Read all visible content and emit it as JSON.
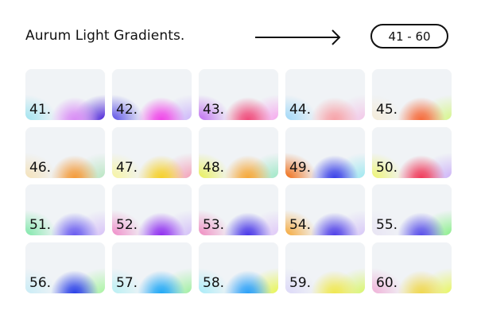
{
  "header": {
    "title": "Aurum Light Gradients.",
    "range_label": "41 - 60",
    "arrow_icon": "long-arrow-right-icon"
  },
  "cards": [
    {
      "label": "41.",
      "colors": [
        "#9fe4f0",
        "#d98cf5",
        "#4b22d8"
      ]
    },
    {
      "label": "42.",
      "colors": [
        "#5a4fe6",
        "#f044e8",
        "#cdb6fa"
      ]
    },
    {
      "label": "43.",
      "colors": [
        "#c06df0",
        "#f04a7a",
        "#f6a8ee"
      ]
    },
    {
      "label": "44.",
      "colors": [
        "#9ed8f8",
        "#f7a2a8",
        "#f3c7e8"
      ]
    },
    {
      "label": "45.",
      "colors": [
        "#f5ecd8",
        "#f66a3a",
        "#d6f68a"
      ]
    },
    {
      "label": "46.",
      "colors": [
        "#f5e2b8",
        "#f49a38",
        "#b9e6c2"
      ]
    },
    {
      "label": "47.",
      "colors": [
        "#f7f4a0",
        "#f6d028",
        "#f4a0b8"
      ]
    },
    {
      "label": "48.",
      "colors": [
        "#e8f058",
        "#f6a838",
        "#9ee8c6"
      ]
    },
    {
      "label": "49.",
      "colors": [
        "#f06a10",
        "#3a40e8",
        "#9ee8f0"
      ]
    },
    {
      "label": "50.",
      "colors": [
        "#eef470",
        "#f03a5a",
        "#cdb2f8"
      ]
    },
    {
      "label": "51.",
      "colors": [
        "#7de8a8",
        "#6a5cf0",
        "#d8c2f8"
      ]
    },
    {
      "label": "52.",
      "colors": [
        "#f08ac8",
        "#9030f0",
        "#d4c0f8"
      ]
    },
    {
      "label": "53.",
      "colors": [
        "#f08ac0",
        "#4a38e8",
        "#e0c8f8"
      ]
    },
    {
      "label": "54.",
      "colors": [
        "#f6a838",
        "#5040e8",
        "#d8c8f8"
      ]
    },
    {
      "label": "55.",
      "colors": [
        "#e8e4f4",
        "#5a50ea",
        "#8af08a"
      ]
    },
    {
      "label": "56.",
      "colors": [
        "#c8ecf6",
        "#2a40e8",
        "#a8f4a0"
      ]
    },
    {
      "label": "57.",
      "colors": [
        "#b8f0f4",
        "#20a8f6",
        "#a0f0a0"
      ]
    },
    {
      "label": "58.",
      "colors": [
        "#a8ecf8",
        "#2aa0f8",
        "#e8f650"
      ]
    },
    {
      "label": "59.",
      "colors": [
        "#dcd8f8",
        "#f0e850",
        "#d8f668"
      ]
    },
    {
      "label": "60.",
      "colors": [
        "#f0b0d8",
        "#f0d850",
        "#e8f660"
      ]
    }
  ]
}
